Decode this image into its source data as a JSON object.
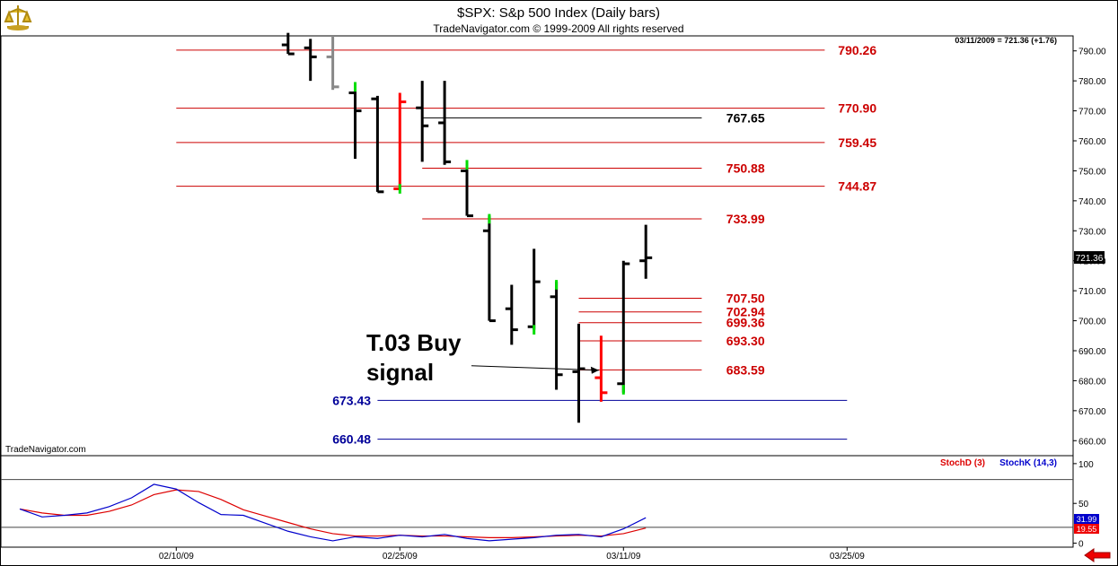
{
  "header": {
    "title": "$SPX:  S&p 500 Index  (Daily bars)",
    "copyright": "TradeNavigator.com © 1999-2009 All rights reserved",
    "last_price_readout": "03/11/2009 = 721.36 (+1.76)"
  },
  "watermark": "TradeNavigator.com",
  "colors": {
    "up_bar": "#000000",
    "gap_up_tick": "#00dd00",
    "down_signal_bar": "#ff0000",
    "resistance_line": "#cc0000",
    "support_line": "#000099",
    "stoch_d": "#dd0000",
    "stoch_k": "#0000cc"
  },
  "chart_data": [
    {
      "type": "bar",
      "name": "price",
      "ylim": [
        655,
        795
      ],
      "xlim": [
        0,
        40
      ],
      "y_ticks": [
        "790.00",
        "780.00",
        "770.00",
        "760.00",
        "750.00",
        "740.00",
        "730.00",
        "720.00",
        "710.00",
        "700.00",
        "690.00",
        "680.00",
        "670.00",
        "660.00"
      ],
      "x_ticks": [
        {
          "label": "02/10/09",
          "x": 7
        },
        {
          "label": "02/25/09",
          "x": 17
        },
        {
          "label": "03/11/09",
          "x": 27
        },
        {
          "label": "03/25/09",
          "x": 37
        }
      ],
      "current_price_label": "721.36",
      "ohlc": [
        {
          "x": 12,
          "h": 796,
          "l": 789,
          "o": 792,
          "c": 789
        },
        {
          "x": 13,
          "h": 794,
          "l": 780,
          "o": 791,
          "c": 788
        },
        {
          "x": 14,
          "h": 795,
          "l": 777,
          "o": 788,
          "c": 778,
          "color": "gray"
        },
        {
          "x": 15,
          "h": 778,
          "l": 754,
          "o": 776,
          "c": 770
        },
        {
          "x": 16,
          "h": 775,
          "l": 743,
          "o": 774,
          "c": 743
        },
        {
          "x": 17,
          "h": 776,
          "l": 744,
          "o": 744,
          "c": 773,
          "color": "red"
        },
        {
          "x": 18,
          "h": 780,
          "l": 753,
          "o": 771,
          "c": 765
        },
        {
          "x": 19,
          "h": 780,
          "l": 752,
          "o": 766,
          "c": 753
        },
        {
          "x": 20,
          "h": 753,
          "l": 735,
          "o": 750,
          "c": 735
        },
        {
          "x": 21,
          "h": 735,
          "l": 700,
          "o": 730,
          "c": 700
        },
        {
          "x": 22,
          "h": 712,
          "l": 692,
          "o": 704,
          "c": 697
        },
        {
          "x": 23,
          "h": 724,
          "l": 697,
          "o": 698,
          "c": 713
        },
        {
          "x": 24,
          "h": 713,
          "l": 677,
          "o": 708,
          "c": 682
        },
        {
          "x": 25,
          "h": 699,
          "l": 666,
          "o": 683,
          "c": 684
        },
        {
          "x": 26,
          "h": 695,
          "l": 673,
          "o": 681,
          "c": 676,
          "color": "red"
        },
        {
          "x": 27,
          "h": 720,
          "l": 676,
          "o": 679,
          "c": 719
        },
        {
          "x": 28,
          "h": 732,
          "l": 714,
          "o": 720,
          "c": 721
        }
      ],
      "green_ticks": [
        {
          "x": 15,
          "y": 778
        },
        {
          "x": 17,
          "y": 744
        },
        {
          "x": 20,
          "y": 752
        },
        {
          "x": 21,
          "y": 734
        },
        {
          "x": 23,
          "y": 697
        },
        {
          "x": 24,
          "y": 712
        },
        {
          "x": 27,
          "y": 677
        }
      ],
      "levels": [
        {
          "value": 790.26,
          "label": "790.26",
          "x_start": 7,
          "x_end": 36,
          "label_x": 37,
          "color": "red"
        },
        {
          "value": 770.9,
          "label": "770.90",
          "x_start": 7,
          "x_end": 36,
          "label_x": 37,
          "color": "red"
        },
        {
          "value": 767.65,
          "label": "767.65",
          "x_start": 18,
          "x_end": 30.5,
          "label_x": 32,
          "color": "black"
        },
        {
          "value": 759.45,
          "label": "759.45",
          "x_start": 7,
          "x_end": 36,
          "label_x": 37,
          "color": "red"
        },
        {
          "value": 750.88,
          "label": "750.88",
          "x_start": 18,
          "x_end": 30.5,
          "label_x": 32,
          "color": "red"
        },
        {
          "value": 744.87,
          "label": "744.87",
          "x_start": 7,
          "x_end": 36,
          "label_x": 37,
          "color": "red"
        },
        {
          "value": 733.99,
          "label": "733.99",
          "x_start": 18,
          "x_end": 30.5,
          "label_x": 32,
          "color": "red"
        },
        {
          "value": 707.5,
          "label": "707.50",
          "x_start": 25,
          "x_end": 30.5,
          "label_x": 32,
          "color": "red"
        },
        {
          "value": 702.94,
          "label": "702.94",
          "x_start": 25,
          "x_end": 30.5,
          "label_x": 32,
          "color": "red"
        },
        {
          "value": 699.36,
          "label": "699.36",
          "x_start": 25,
          "x_end": 30.5,
          "label_x": 32,
          "color": "red"
        },
        {
          "value": 693.3,
          "label": "693.30",
          "x_start": 25,
          "x_end": 30.5,
          "label_x": 32,
          "color": "red"
        },
        {
          "value": 683.59,
          "label": "683.59",
          "x_start": 25,
          "x_end": 30.5,
          "label_x": 32,
          "color": "red"
        },
        {
          "value": 673.43,
          "label": "673.43",
          "x_start": 16,
          "x_end": 37,
          "label_x": 14.5,
          "color": "blue"
        },
        {
          "value": 660.48,
          "label": "660.48",
          "x_start": 16,
          "x_end": 37,
          "label_x": 14.5,
          "color": "blue"
        }
      ],
      "annotation": {
        "lines": [
          "T.03 Buy",
          "signal"
        ],
        "text_x": 15.5,
        "text_y": 690,
        "arrow_from": {
          "x": 20.2,
          "y": 685
        },
        "arrow_to": {
          "x": 25.9,
          "y": 683.5
        }
      }
    },
    {
      "type": "line",
      "name": "stochastic",
      "ylim": [
        -5,
        110
      ],
      "y_ticks": [
        "100",
        "50",
        "0"
      ],
      "ref_lines": [
        80,
        20
      ],
      "legend": [
        "StochD (3)",
        "StochK (14,3)"
      ],
      "readouts": {
        "stoch_k": "31.99",
        "stoch_d": "19.55"
      },
      "series": [
        {
          "name": "StochD (3)",
          "color": "red",
          "x": [
            0,
            1,
            2,
            3,
            4,
            5,
            6,
            7,
            8,
            9,
            10,
            11,
            12,
            13,
            14,
            15,
            16,
            17,
            18,
            19,
            20,
            21,
            22,
            23,
            24,
            25,
            26,
            27,
            28
          ],
          "values": [
            43,
            38,
            35,
            35,
            40,
            48,
            61,
            67,
            65,
            55,
            42,
            34,
            26,
            18,
            12,
            9,
            9,
            10,
            9,
            9,
            8,
            7,
            7,
            8,
            9,
            10,
            9,
            12,
            19
          ]
        },
        {
          "name": "StochK (14,3)",
          "color": "blue",
          "x": [
            0,
            1,
            2,
            3,
            4,
            5,
            6,
            7,
            8,
            9,
            10,
            11,
            12,
            13,
            14,
            15,
            16,
            17,
            18,
            19,
            20,
            21,
            22,
            23,
            24,
            25,
            26,
            27,
            28
          ],
          "values": [
            43,
            33,
            35,
            38,
            46,
            57,
            74,
            68,
            51,
            36,
            35,
            25,
            15,
            8,
            3,
            8,
            6,
            10,
            8,
            11,
            6,
            3,
            5,
            7,
            10,
            11,
            8,
            18,
            32
          ]
        }
      ]
    }
  ]
}
